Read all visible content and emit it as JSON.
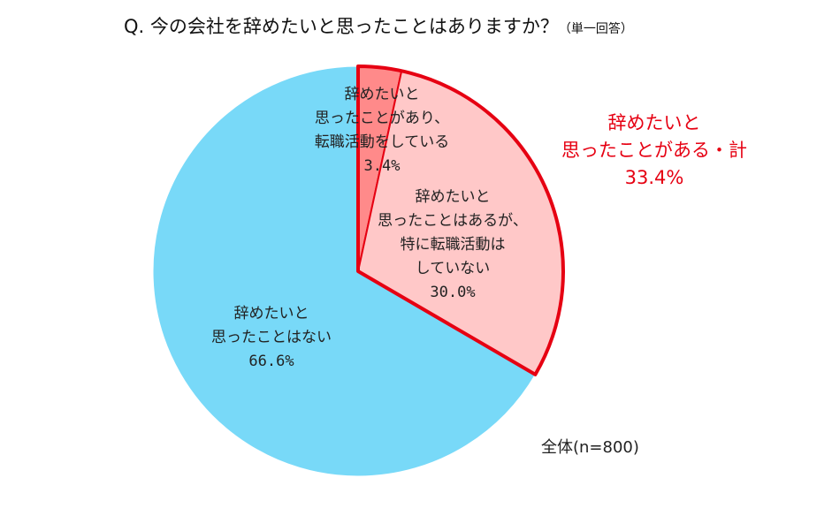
{
  "chart_data": {
    "type": "pie",
    "title": "Q. 今の会社を辞めたいと思ったことはありますか？",
    "subtitle": "（単一回答）",
    "total_label": "全体(n=800)",
    "start": "top, clockwise",
    "slices": [
      {
        "label_lines": [
          "辞めたいと",
          "思ったことがあり、",
          "転職活動をしている"
        ],
        "value": 3.4,
        "display": "3.4%",
        "color": "#ff8a8a",
        "highlight": true
      },
      {
        "label_lines": [
          "辞めたいと",
          "思ったことはあるが、",
          "特に転職活動は",
          "していない"
        ],
        "value": 30.0,
        "display": "30.0%",
        "color": "#ffc8c8",
        "highlight": true
      },
      {
        "label_lines": [
          "辞めたいと",
          "思ったことはない"
        ],
        "value": 66.6,
        "display": "66.6%",
        "color": "#78d9f8",
        "highlight": false
      }
    ],
    "callout": {
      "lines": [
        "辞めたいと",
        "思ったことがある・計",
        "33.4%"
      ],
      "color": "#e60012"
    }
  }
}
